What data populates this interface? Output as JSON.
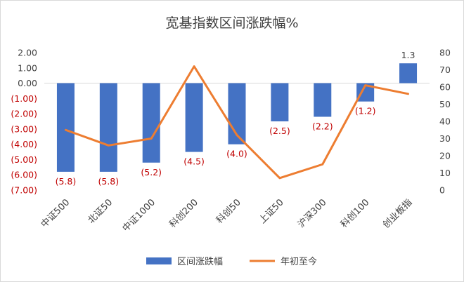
{
  "chart_data": {
    "type": "bar",
    "title": "宽基指数区间涨跌幅%",
    "categories": [
      "中证500",
      "北证50",
      "中证1000",
      "科创200",
      "科创50",
      "上证50",
      "沪深300",
      "科创100",
      "创业板指"
    ],
    "series": [
      {
        "name": "区间涨跌幅",
        "type": "bar",
        "axis": "left",
        "color": "#4472C4",
        "values": [
          -5.8,
          -5.8,
          -5.2,
          -4.5,
          -4.0,
          -2.5,
          -2.2,
          -1.2,
          1.3
        ],
        "data_labels": [
          "(5.8)",
          "(5.8)",
          "(5.2)",
          "(4.5)",
          "(4.0)",
          "(2.5)",
          "(2.2)",
          "(1.2)",
          "1.3"
        ]
      },
      {
        "name": "年初至今",
        "type": "line",
        "axis": "right",
        "color": "#ED7D31",
        "values": [
          35,
          26,
          30,
          72,
          32,
          7,
          15,
          61,
          56
        ]
      }
    ],
    "left_axis": {
      "ylim": [
        -7,
        2
      ],
      "ticks": [
        2,
        1,
        0,
        -1,
        -2,
        -3,
        -4,
        -5,
        -6,
        -7
      ],
      "tick_labels": [
        "2.00",
        "1.00",
        "0.00",
        "(1.00)",
        "(2.00)",
        "(3.00)",
        "(4.00)",
        "(5.00)",
        "(6.00)",
        "(7.00)"
      ],
      "positive_color": "#404040",
      "negative_color": "#C00000"
    },
    "right_axis": {
      "ylim": [
        0,
        80
      ],
      "ticks": [
        80,
        70,
        60,
        50,
        40,
        30,
        20,
        10,
        0
      ],
      "tick_labels": [
        "80",
        "70",
        "60",
        "50",
        "40",
        "30",
        "20",
        "10",
        "0"
      ]
    },
    "data_label_colors": {
      "negative": "#C00000",
      "positive": "#404040"
    },
    "legend_position": "bottom",
    "grid": false
  }
}
